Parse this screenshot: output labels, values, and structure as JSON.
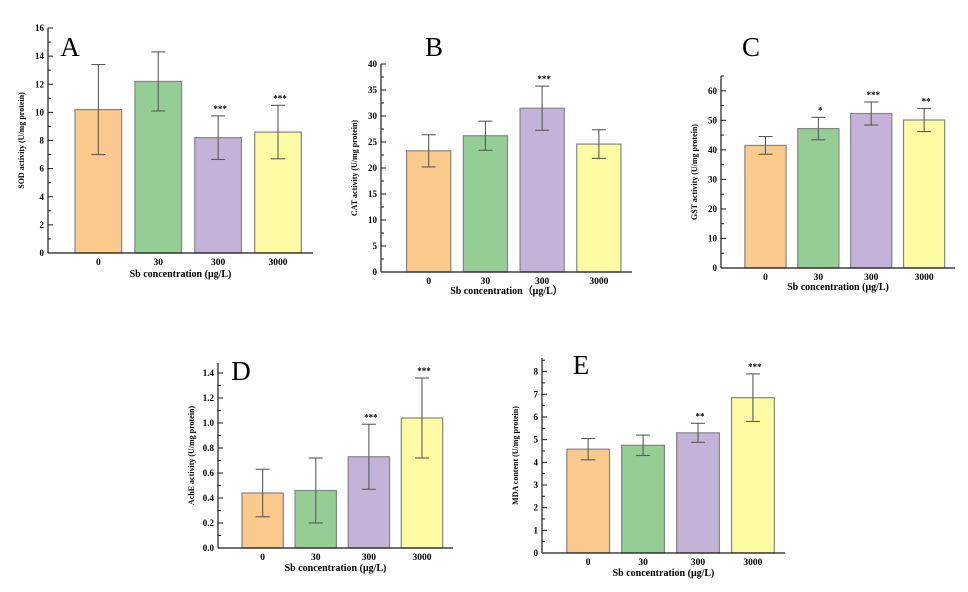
{
  "figure": {
    "background": "#ffffff",
    "bar_fill_colors": [
      "#FAC98C",
      "#94CE94",
      "#C3B3D8",
      "#FDFBA3"
    ],
    "bar_border_color": "#858585",
    "error_bar_color": "#5a5a5a",
    "axis_color": "#1a1a1a",
    "text_color": "#000000"
  },
  "chart_data": [
    {
      "type": "bar",
      "panel": "A",
      "ylabel": "SOD activity (U/mg protein)",
      "xlabel": "Sb concentration (μg/L)",
      "categories": [
        "0",
        "30",
        "300",
        "3000"
      ],
      "values": [
        10.2,
        12.2,
        8.2,
        8.6
      ],
      "errors": [
        3.2,
        2.1,
        1.55,
        1.9
      ],
      "significance": [
        "",
        "",
        "***",
        "***"
      ],
      "ylim": [
        0,
        16
      ],
      "ytick_step": 2,
      "ytick_max": 16,
      "ytick_decimals": 0,
      "grid": false,
      "legend": "none"
    },
    {
      "type": "bar",
      "panel": "B",
      "ylabel": "CAT activity (U/mg protein)",
      "xlabel": "Sb concentration（μg/L）",
      "categories": [
        "0",
        "30",
        "300",
        "3000"
      ],
      "values": [
        23.3,
        26.2,
        31.5,
        24.6
      ],
      "errors": [
        3.1,
        2.8,
        4.25,
        2.75
      ],
      "significance": [
        "",
        "",
        "***",
        ""
      ],
      "ylim": [
        0,
        40
      ],
      "ytick_step": 5,
      "ytick_max": 40,
      "ytick_decimals": 0,
      "grid": false,
      "legend": "none"
    },
    {
      "type": "bar",
      "panel": "C",
      "ylabel": "GST activity (U/mg protein)",
      "xlabel": "Sb concentration (μg/L)",
      "categories": [
        "0",
        "30",
        "300",
        "3000"
      ],
      "values": [
        41.5,
        47.2,
        52.3,
        50.1
      ],
      "errors": [
        3.0,
        3.8,
        3.9,
        3.9
      ],
      "significance": [
        "",
        "*",
        "***",
        "**"
      ],
      "ylim": [
        0,
        65
      ],
      "ytick_step": 10,
      "ytick_max": 60,
      "ytick_decimals": 0,
      "grid": false,
      "legend": "none"
    },
    {
      "type": "bar",
      "panel": "D",
      "ylabel": "AchE activity (U/mg protein)",
      "xlabel": "Sb concentration (μg/L)",
      "categories": [
        "0",
        "30",
        "300",
        "3000"
      ],
      "values": [
        0.44,
        0.46,
        0.73,
        1.04
      ],
      "errors": [
        0.19,
        0.26,
        0.26,
        0.32
      ],
      "significance": [
        "",
        "",
        "***",
        "***"
      ],
      "ylim": [
        0,
        1.48
      ],
      "ytick_step": 0.2,
      "ytick_max": 1.4,
      "ytick_decimals": 1,
      "grid": false,
      "legend": "none"
    },
    {
      "type": "bar",
      "panel": "E",
      "ylabel": "MDA content (U/mg protein)",
      "xlabel": "Sb concentration (μg/L)",
      "categories": [
        "0",
        "30",
        "300",
        "3000"
      ],
      "values": [
        4.58,
        4.75,
        5.3,
        6.85
      ],
      "errors": [
        0.47,
        0.45,
        0.42,
        1.05
      ],
      "significance": [
        "",
        "",
        "**",
        "***"
      ],
      "ylim": [
        0,
        8.6
      ],
      "ytick_step": 1,
      "ytick_max": 8,
      "ytick_decimals": 0,
      "grid": false,
      "legend": "none"
    }
  ]
}
